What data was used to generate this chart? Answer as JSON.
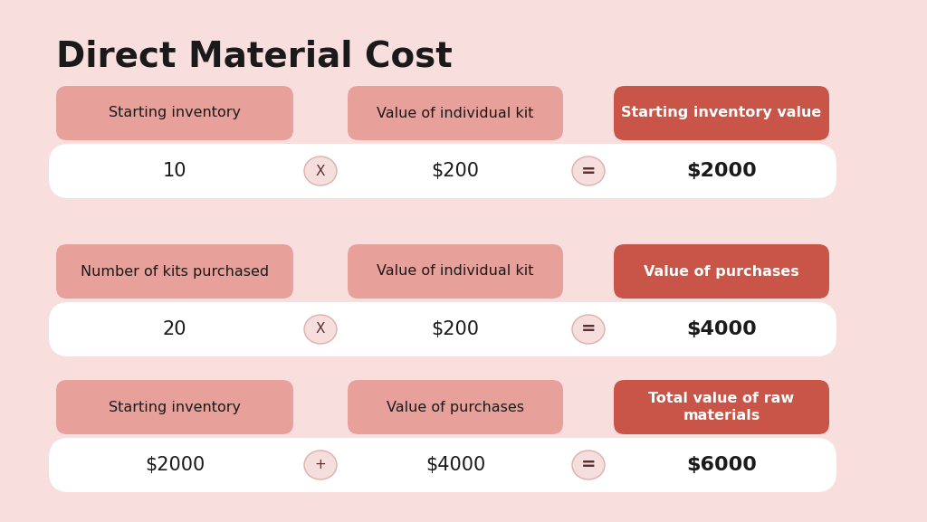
{
  "title": "Direct Material Cost",
  "bg_color": "#f9dede",
  "rows": [
    {
      "label1": "Starting inventory",
      "label2": "Value of individual kit",
      "label3": "Starting inventory value",
      "val1": "10",
      "operator": "X",
      "val2": "$200",
      "val3": "$2000",
      "label3_color": "#c95448",
      "label3_text_color": "#ffffff"
    },
    {
      "label1": "Number of kits purchased",
      "label2": "Value of individual kit",
      "label3": "Value of purchases",
      "val1": "20",
      "operator": "X",
      "val2": "$200",
      "val3": "$4000",
      "label3_color": "#c95448",
      "label3_text_color": "#ffffff"
    },
    {
      "label1": "Starting inventory",
      "label2": "Value of purchases",
      "label3": "Total value of raw\nmaterials",
      "val1": "$2000",
      "operator": "+",
      "val2": "$4000",
      "val3": "$6000",
      "label3_color": "#c95448",
      "label3_text_color": "#ffffff"
    }
  ],
  "label_box_color": "#e8a09a",
  "operator_circle_color": "#f5dedd",
  "operator_circle_border": "#ddb0aa",
  "title_color": "#1a1a1a",
  "label_text_color": "#1a1a1a",
  "value_text_color": "#1a1a1a"
}
